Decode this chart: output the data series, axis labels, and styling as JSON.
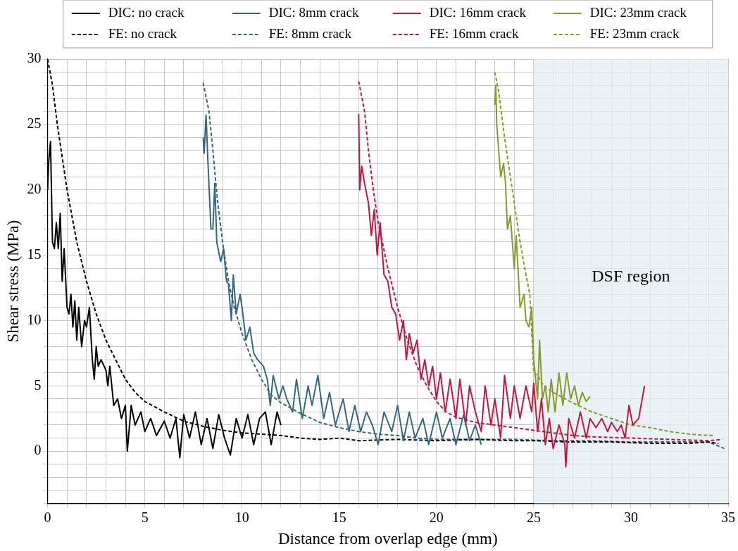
{
  "chart_data": {
    "type": "line",
    "xlabel": "Distance from overlap edge (mm)",
    "ylabel": "Shear stress (MPa)",
    "xlim": [
      0,
      35
    ],
    "ylim": [
      -4,
      30
    ],
    "xticks": [
      0,
      {
        "value": 1,
        "label": null
      },
      {
        "value": 2,
        "label": null
      },
      {
        "value": 3,
        "label": null
      },
      {
        "value": 4,
        "label": null
      },
      5,
      {
        "value": 6,
        "label": null
      },
      {
        "value": 7,
        "label": null
      },
      {
        "value": 8,
        "label": null
      },
      {
        "value": 9,
        "label": null
      },
      10,
      {
        "value": 11,
        "label": null
      },
      {
        "value": 12,
        "label": null
      },
      {
        "value": 13,
        "label": null
      },
      {
        "value": 14,
        "label": null
      },
      15,
      {
        "value": 16,
        "label": null
      },
      {
        "value": 17,
        "label": null
      },
      {
        "value": 18,
        "label": null
      },
      {
        "value": 19,
        "label": null
      },
      20,
      {
        "value": 21,
        "label": null
      },
      {
        "value": 22,
        "label": null
      },
      {
        "value": 23,
        "label": null
      },
      {
        "value": 24,
        "label": null
      },
      25,
      {
        "value": 26,
        "label": null
      },
      {
        "value": 27,
        "label": null
      },
      {
        "value": 28,
        "label": null
      },
      {
        "value": 29,
        "label": null
      },
      30,
      {
        "value": 31,
        "label": null
      },
      {
        "value": 32,
        "label": null
      },
      {
        "value": 33,
        "label": null
      },
      {
        "value": 34,
        "label": null
      },
      35
    ],
    "yticks": [
      {
        "value": -4,
        "label": null
      },
      {
        "value": -3,
        "label": null
      },
      {
        "value": -2,
        "label": null
      },
      {
        "value": -1,
        "label": null
      },
      0,
      {
        "value": 1,
        "label": null
      },
      {
        "value": 2,
        "label": null
      },
      {
        "value": 3,
        "label": null
      },
      {
        "value": 4,
        "label": null
      },
      5,
      {
        "value": 6,
        "label": null
      },
      {
        "value": 7,
        "label": null
      },
      {
        "value": 8,
        "label": null
      },
      {
        "value": 9,
        "label": null
      },
      10,
      {
        "value": 11,
        "label": null
      },
      {
        "value": 12,
        "label": null
      },
      {
        "value": 13,
        "label": null
      },
      {
        "value": 14,
        "label": null
      },
      15,
      {
        "value": 16,
        "label": null
      },
      {
        "value": 17,
        "label": null
      },
      {
        "value": 18,
        "label": null
      },
      {
        "value": 19,
        "label": null
      },
      20,
      {
        "value": 21,
        "label": null
      },
      {
        "value": 22,
        "label": null
      },
      {
        "value": 23,
        "label": null
      },
      {
        "value": 24,
        "label": null
      },
      25,
      {
        "value": 26,
        "label": null
      },
      {
        "value": 27,
        "label": null
      },
      {
        "value": 28,
        "label": null
      },
      {
        "value": 29,
        "label": null
      },
      30
    ],
    "grid": true,
    "legend": "top",
    "marker": "none",
    "bands": [
      {
        "axis": "x",
        "from": 25,
        "to": 35,
        "label": "DSF region",
        "color": "#e3edf3"
      }
    ],
    "series": [
      {
        "name": "DIC: no crack",
        "color": "#000000",
        "line_style": "solid",
        "x": [
          0,
          0.05,
          0.15,
          0.25,
          0.35,
          0.45,
          0.55,
          0.65,
          0.75,
          0.85,
          1,
          1.1,
          1.2,
          1.3,
          1.4,
          1.5,
          1.6,
          1.75,
          1.9,
          2,
          2.15,
          2.3,
          2.4,
          2.5,
          2.6,
          2.75,
          3,
          3.1,
          3.2,
          3.4,
          3.6,
          3.8,
          4,
          4.1,
          4.3,
          4.5,
          4.8,
          5,
          5.3,
          5.6,
          6,
          6.3,
          6.6,
          6.8,
          7,
          7.3,
          7.6,
          7.9,
          8.2,
          8.5,
          8.8,
          9.1,
          9.4,
          9.7,
          10,
          10.3,
          10.6,
          10.9,
          11.2,
          11.5,
          11.8,
          12
        ],
        "values": [
          20,
          22,
          23.7,
          16,
          15.5,
          17.5,
          15.5,
          18.2,
          13,
          15.5,
          11,
          10.5,
          12,
          9.5,
          11.5,
          8.5,
          11,
          8,
          10,
          9.5,
          11,
          7,
          5.5,
          8,
          6.5,
          7,
          6.2,
          5,
          6.5,
          3.5,
          4,
          2.5,
          3.5,
          0,
          3.5,
          2,
          3,
          1.5,
          2.5,
          1.2,
          2.3,
          1,
          2.5,
          -0.5,
          2.8,
          1,
          3,
          0.5,
          2.5,
          0.2,
          2.8,
          1,
          -0.3,
          2.5,
          1,
          2.8,
          0.5,
          2.5,
          3,
          0.5,
          3,
          2
        ]
      },
      {
        "name": "DIC: 8mm crack",
        "color": "#35687d",
        "line_style": "solid",
        "x": [
          8,
          8.05,
          8.15,
          8.25,
          8.4,
          8.5,
          8.6,
          8.7,
          8.9,
          9.05,
          9.2,
          9.3,
          9.45,
          9.55,
          9.7,
          9.9,
          10,
          10.2,
          10.4,
          10.6,
          10.8,
          11.1,
          11.3,
          11.45,
          11.6,
          11.9,
          12.1,
          12.3,
          12.6,
          12.8,
          13.1,
          13.4,
          13.6,
          13.9,
          14.2,
          14.5,
          14.8,
          15.2,
          15.5,
          15.8,
          16.1,
          16.4,
          16.7,
          17,
          17.3,
          17.7,
          18,
          18.3,
          18.6,
          18.9,
          19.3,
          19.6,
          20,
          20.3,
          20.7,
          21,
          21.4,
          21.7,
          22,
          22.3
        ],
        "values": [
          24,
          22.8,
          25.7,
          22,
          17,
          17,
          20.5,
          16,
          14.5,
          15.5,
          13,
          12.8,
          10,
          13.5,
          10.5,
          12,
          11,
          8.5,
          9.5,
          7.5,
          7,
          6.5,
          5.5,
          3.5,
          5.8,
          4,
          5,
          4,
          3,
          5.5,
          2.5,
          5,
          3.5,
          5.8,
          2.5,
          4.5,
          2,
          4,
          1.5,
          3.5,
          1.5,
          3,
          2,
          0.5,
          3,
          1.5,
          3.5,
          0.8,
          3,
          1,
          2.5,
          0.5,
          3,
          1,
          2.5,
          0.5,
          2.8,
          0.8,
          2,
          0.5
        ]
      },
      {
        "name": "DIC: 16mm crack",
        "color": "#c0183c",
        "line_style": "solid",
        "x": [
          16,
          16.05,
          16.15,
          16.3,
          16.5,
          16.65,
          16.8,
          16.95,
          17.1,
          17.3,
          17.5,
          17.7,
          17.9,
          18.1,
          18.3,
          18.45,
          18.6,
          18.8,
          19,
          19.2,
          19.4,
          19.6,
          19.8,
          20,
          20.2,
          20.45,
          20.7,
          21,
          21.2,
          21.5,
          21.7,
          22,
          22.3,
          22.5,
          22.8,
          23,
          23.3,
          23.5,
          23.8,
          24,
          24.3,
          24.6,
          24.9,
          25,
          25.2,
          25.4,
          25.6,
          25.8,
          26,
          26.3,
          26.6,
          26.65,
          26.8,
          27.1,
          27.4,
          27.7,
          27.9,
          28.2,
          28.5,
          28.8,
          29,
          29.3,
          29.5,
          29.7,
          29.9,
          30.1,
          30.4,
          30.7
        ],
        "values": [
          25.8,
          20,
          21.8,
          20.5,
          19,
          16.5,
          18.5,
          15,
          17.5,
          13.5,
          13,
          11,
          10.5,
          8.5,
          10,
          7,
          9,
          7.5,
          8.5,
          5.5,
          7,
          5,
          6.5,
          4,
          6,
          3,
          5.5,
          2.5,
          5.5,
          2,
          5,
          3,
          1.5,
          5,
          2,
          4,
          1,
          5.8,
          2.5,
          5,
          2.5,
          5,
          3,
          5.2,
          1.5,
          4,
          0.5,
          2.5,
          0.2,
          2,
          0.5,
          -1.2,
          2.5,
          1,
          3,
          1,
          2.5,
          1.8,
          2.5,
          1.5,
          2.2,
          1.5,
          2,
          1,
          3.5,
          2,
          2.5,
          5
        ]
      },
      {
        "name": "DIC: 23mm crack",
        "color": "#8a9a2a",
        "line_style": "solid",
        "x": [
          23,
          23.05,
          23.1,
          23.3,
          23.45,
          23.55,
          23.65,
          23.8,
          24,
          24.1,
          24.3,
          24.5,
          24.6,
          24.75,
          24.9,
          25,
          25.2,
          25.3,
          25.45,
          25.6,
          25.75,
          25.9,
          26.1,
          26.3,
          26.5,
          26.7,
          26.9,
          27.1,
          27.3,
          27.5,
          27.7,
          27.9
        ],
        "values": [
          26.5,
          28,
          25,
          21,
          22,
          20.5,
          17,
          18,
          14,
          16.5,
          11,
          12,
          10,
          9.5,
          11,
          7,
          4,
          8.5,
          4,
          5,
          3,
          5.5,
          3,
          6,
          3.5,
          6,
          4,
          5,
          3.5,
          4.5,
          3.8,
          4.2
        ]
      },
      {
        "name": "FE: no crack",
        "color": "#000000",
        "line_style": "dashed",
        "x": [
          0,
          0.25,
          0.5,
          1,
          1.5,
          2,
          2.5,
          3,
          3.5,
          4,
          4.5,
          5,
          6,
          7,
          8,
          9,
          10,
          11,
          12,
          13,
          14,
          15,
          16,
          18,
          20,
          22,
          24,
          25,
          27,
          29,
          31,
          33,
          34,
          34.5
        ],
        "values": [
          30,
          28,
          25,
          20,
          16,
          13,
          10.5,
          8.5,
          7,
          5.5,
          4.5,
          3.8,
          3,
          2.3,
          1.9,
          1.6,
          1.4,
          1.3,
          1.2,
          1,
          0.9,
          1,
          0.8,
          0.9,
          0.8,
          0.9,
          0.8,
          0.8,
          0.7,
          0.7,
          0.6,
          0.6,
          0.7,
          0.6
        ]
      },
      {
        "name": "FE: 8mm crack",
        "color": "#35687d",
        "line_style": "dashed",
        "x": [
          8,
          8.3,
          8.5,
          8.75,
          9,
          9.3,
          9.6,
          10,
          10.5,
          11,
          11.5,
          12,
          13,
          14,
          15,
          16,
          17,
          18,
          19,
          20,
          22,
          24,
          26,
          28,
          30,
          32,
          34,
          34.8
        ],
        "values": [
          28.2,
          26,
          23,
          19,
          16,
          13,
          11,
          9,
          7,
          5.5,
          4.3,
          3.7,
          2.9,
          2.2,
          1.8,
          1.5,
          1.3,
          1.2,
          1,
          0.9,
          0.9,
          0.9,
          0.8,
          0.8,
          0.7,
          0.7,
          0.7,
          0.2
        ]
      },
      {
        "name": "FE: 16mm crack",
        "color": "#c0183c",
        "line_style": "dashed",
        "x": [
          16,
          16.3,
          16.5,
          16.75,
          17,
          17.5,
          18,
          18.5,
          19,
          19.5,
          20,
          20.5,
          21,
          22,
          23,
          24,
          25,
          26,
          27,
          28,
          30,
          32,
          34,
          34.7
        ],
        "values": [
          28.3,
          26,
          23,
          20,
          17.5,
          14,
          11,
          8.5,
          6.5,
          5,
          3.8,
          3,
          2.6,
          2.2,
          2,
          1.8,
          1.6,
          1.4,
          1.2,
          1.1,
          1,
          0.9,
          0.8,
          0.9
        ]
      },
      {
        "name": "FE: 23mm crack",
        "color": "#8a9a2a",
        "line_style": "dashed",
        "x": [
          23,
          23.2,
          23.5,
          23.7,
          24,
          24.3,
          24.6,
          24.8,
          25,
          25.2,
          25.5,
          26,
          27,
          28,
          29,
          30,
          31,
          32,
          33,
          34,
          34.3
        ],
        "values": [
          29,
          27.5,
          24,
          22,
          19,
          16,
          13.5,
          12,
          6,
          5.8,
          5,
          4.5,
          3.7,
          3,
          2.5,
          2,
          1.8,
          1.5,
          1.3,
          1.2,
          1.2
        ]
      }
    ]
  }
}
